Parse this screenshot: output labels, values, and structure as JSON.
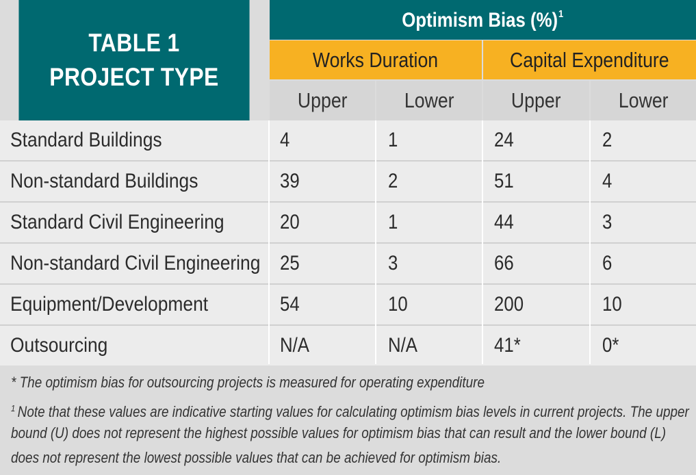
{
  "table": {
    "title_line1": "TABLE 1",
    "title_line2": "PROJECT TYPE",
    "bias_header": "Optimism Bias (%)",
    "bias_header_sup": "1",
    "groups": [
      "Works Duration",
      "Capital Expenditure"
    ],
    "subheaders": [
      "Upper",
      "Lower",
      "Upper",
      "Lower"
    ],
    "rows": [
      {
        "project": "Standard Buildings",
        "values": [
          "4",
          "1",
          "24",
          "2"
        ]
      },
      {
        "project": "Non-standard Buildings",
        "values": [
          "39",
          "2",
          "51",
          "4"
        ]
      },
      {
        "project": "Standard Civil Engineering",
        "values": [
          "20",
          "1",
          "44",
          "3"
        ]
      },
      {
        "project": "Non-standard Civil Engineering",
        "values": [
          "25",
          "3",
          "66",
          "6"
        ]
      },
      {
        "project": "Equipment/Development",
        "values": [
          "54",
          "10",
          "200",
          "10"
        ]
      },
      {
        "project": "Outsourcing",
        "values": [
          "N/A",
          "N/A",
          "41*",
          "0*"
        ]
      }
    ]
  },
  "footnotes": {
    "star_note": "* The optimism bias for outsourcing projects is measured for operating expenditure",
    "note1_marker": "1",
    "note1_line1": "Note that these values are indicative starting values for calculating optimism bias levels in current projects. The upper",
    "note1_line2": "bound (U) does not represent the highest possible values for optimism bias that can result and the lower bound (L)",
    "note1_line3": "does not represent the lowest possible values that can be achieved for optimism bias."
  },
  "colors": {
    "teal": "#006970",
    "orange": "#f7b122",
    "subheader_gray": "#d6d6d6",
    "row_bg": "#ececec",
    "footnote_bg": "#dcdcdc"
  }
}
